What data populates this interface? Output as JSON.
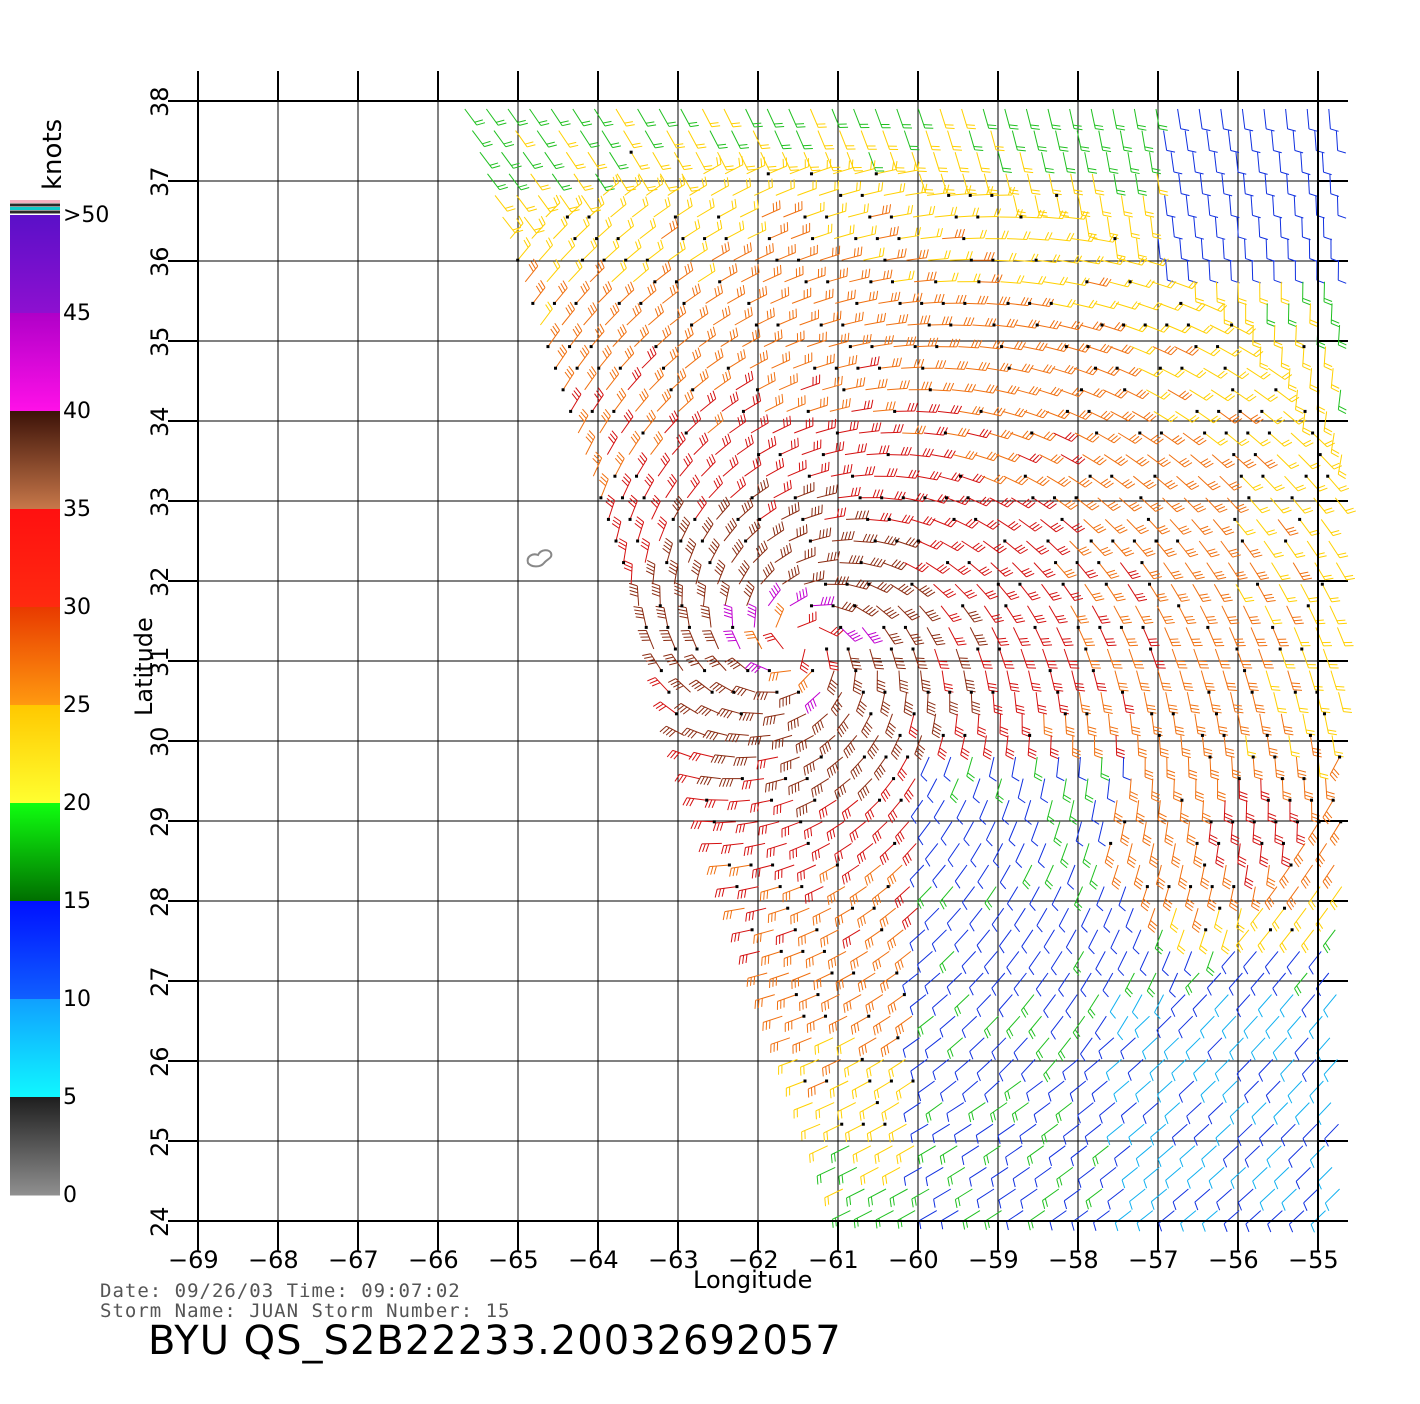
{
  "header": {
    "line1": "Date: 09/26/03   Time: 09:07:02",
    "line2": "Storm  Name:  JUAN    Storm  Number:  15",
    "product": "BYU  QS_S2B22233.20032692057"
  },
  "map": {
    "xlabel": "Longitude",
    "ylabel": "Latitude",
    "lon_ticks": [
      "-69",
      "-68",
      "-67",
      "-66",
      "-65",
      "-64",
      "-63",
      "-62",
      "-61",
      "-60",
      "-59",
      "-58",
      "-57",
      "-56",
      "-55"
    ],
    "lat_ticks": [
      "24",
      "25",
      "26",
      "27",
      "28",
      "29",
      "30",
      "31",
      "32",
      "33",
      "34",
      "35",
      "36",
      "37",
      "38"
    ],
    "lon_range": [
      -69,
      -55
    ],
    "lat_range": [
      24,
      38
    ],
    "grid": true,
    "storm_center": {
      "lon": -61.5,
      "lat": 31.2
    },
    "island_label": "Bermuda outline"
  },
  "colorbar": {
    "unit": "knots",
    "labels": [
      ">50",
      "45",
      "40",
      "35",
      "30",
      "25",
      "20",
      "15",
      "10",
      "5",
      "0"
    ],
    "bands": [
      {
        "from": 45,
        "to": 50,
        "color_top": "#5a10c8",
        "color_bottom": "#8e10d0"
      },
      {
        "from": 40,
        "to": 45,
        "color_top": "#b000c8",
        "color_bottom": "#ff10e8"
      },
      {
        "from": 35,
        "to": 40,
        "color_top": "#3c1208",
        "color_bottom": "#c8784a"
      },
      {
        "from": 30,
        "to": 35,
        "color_top": "#ff1010",
        "color_bottom": "#ff2a10"
      },
      {
        "from": 25,
        "to": 30,
        "color_top": "#e83a00",
        "color_bottom": "#ff9a10"
      },
      {
        "from": 20,
        "to": 25,
        "color_top": "#ffc800",
        "color_bottom": "#ffff30"
      },
      {
        "from": 15,
        "to": 20,
        "color_top": "#10ff10",
        "color_bottom": "#006e00"
      },
      {
        "from": 10,
        "to": 15,
        "color_top": "#0010ff",
        "color_bottom": "#1060ff"
      },
      {
        "from": 5,
        "to": 10,
        "color_top": "#10a0ff",
        "color_bottom": "#10f8ff"
      },
      {
        "from": 0,
        "to": 5,
        "color_top": "#1e1e1e",
        "color_bottom": "#909090"
      }
    ]
  }
}
